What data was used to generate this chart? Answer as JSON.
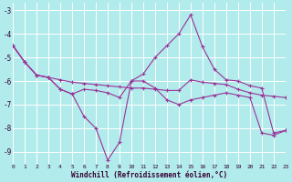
{
  "xlabel": "Windchill (Refroidissement éolien,°C)",
  "background_color": "#b2ebeb",
  "grid_color": "#ffffff",
  "line_color": "#993399",
  "xlim": [
    0,
    23
  ],
  "ylim": [
    -9.5,
    -2.7
  ],
  "yticks": [
    -9,
    -8,
    -7,
    -6,
    -5,
    -4,
    -3
  ],
  "xticks": [
    0,
    1,
    2,
    3,
    4,
    5,
    6,
    7,
    8,
    9,
    10,
    11,
    12,
    13,
    14,
    15,
    16,
    17,
    18,
    19,
    20,
    21,
    22,
    23
  ],
  "line_straight_x": [
    0,
    1,
    2,
    3,
    4,
    5,
    6,
    7,
    8,
    9,
    10,
    11,
    12,
    13,
    14,
    15,
    16,
    17,
    18,
    19,
    20,
    21,
    22,
    23
  ],
  "line_straight_y": [
    -4.5,
    -5.2,
    -5.75,
    -5.85,
    -5.95,
    -6.05,
    -6.1,
    -6.15,
    -6.2,
    -6.25,
    -6.3,
    -6.3,
    -6.35,
    -6.4,
    -6.4,
    -5.95,
    -6.05,
    -6.1,
    -6.15,
    -6.35,
    -6.5,
    -6.6,
    -6.65,
    -6.7
  ],
  "line_peak_x": [
    0,
    1,
    2,
    3,
    4,
    5,
    6,
    7,
    8,
    9,
    10,
    11,
    12,
    13,
    14,
    15,
    16,
    17,
    18,
    19,
    20,
    21,
    22,
    23
  ],
  "line_peak_y": [
    -4.5,
    -5.2,
    -5.75,
    -5.85,
    -6.35,
    -6.55,
    -6.35,
    -6.4,
    -6.5,
    -6.7,
    -6.0,
    -5.7,
    -5.0,
    -4.5,
    -4.0,
    -3.2,
    -4.55,
    -5.5,
    -5.95,
    -6.0,
    -6.2,
    -6.3,
    -8.2,
    -8.1
  ],
  "line_dip_x": [
    0,
    1,
    2,
    3,
    4,
    5,
    6,
    7,
    8,
    9,
    10,
    11,
    12,
    13,
    14,
    15,
    16,
    17,
    18,
    19,
    20,
    21,
    22,
    23
  ],
  "line_dip_y": [
    -4.5,
    -5.2,
    -5.75,
    -5.85,
    -6.35,
    -6.55,
    -7.5,
    -8.0,
    -9.35,
    -8.6,
    -6.0,
    -6.0,
    -6.3,
    -6.8,
    -7.0,
    -6.8,
    -6.7,
    -6.6,
    -6.5,
    -6.6,
    -6.7,
    -8.2,
    -8.3,
    -8.1
  ]
}
